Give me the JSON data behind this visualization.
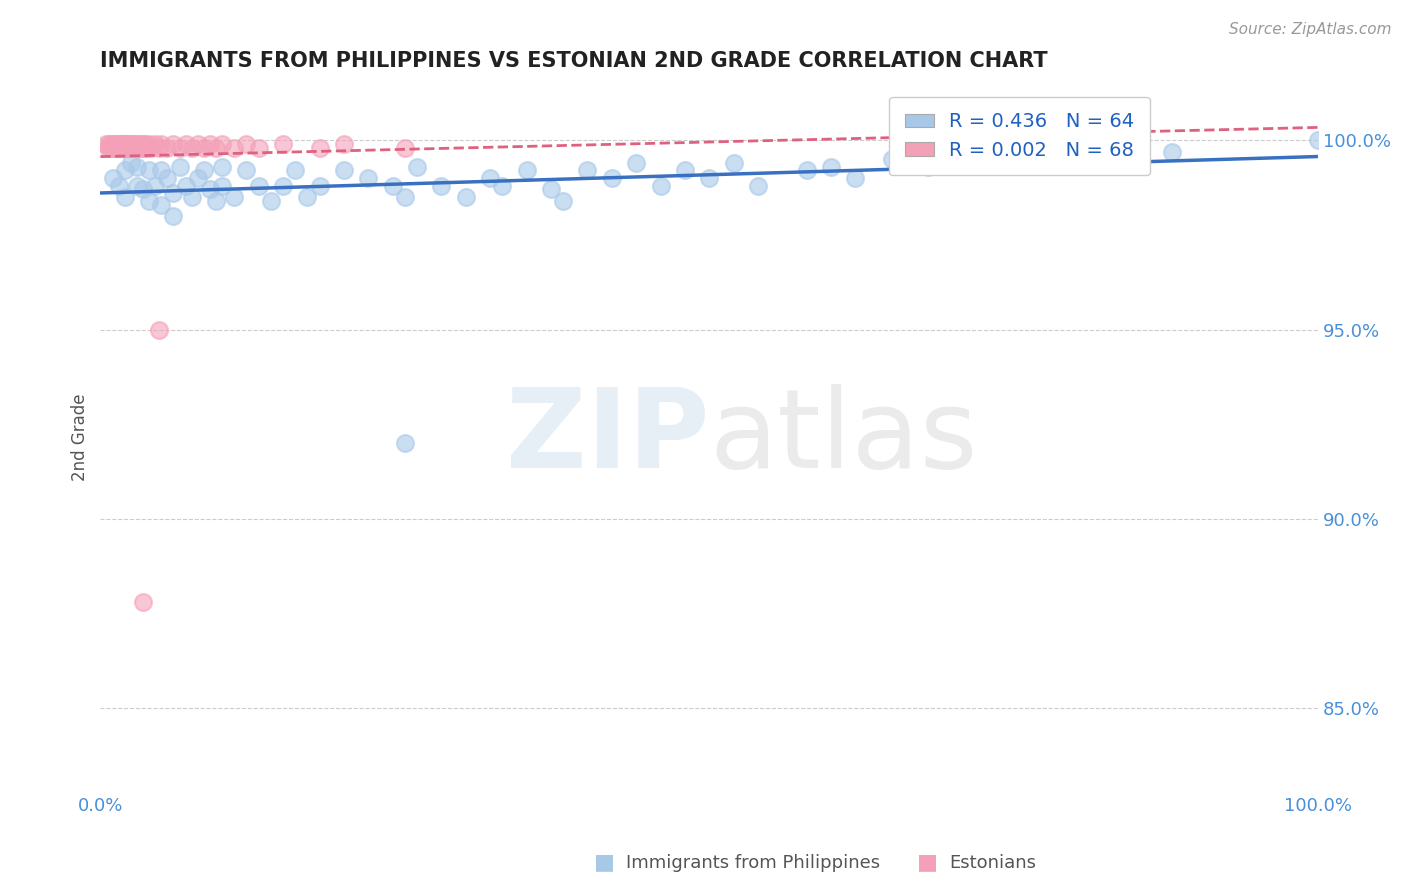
{
  "title": "IMMIGRANTS FROM PHILIPPINES VS ESTONIAN 2ND GRADE CORRELATION CHART",
  "source": "Source: ZipAtlas.com",
  "ylabel": "2nd Grade",
  "legend_R_blue": "R = 0.436",
  "legend_N_blue": "N = 64",
  "legend_R_pink": "R = 0.002",
  "legend_N_pink": "N = 68",
  "blue_color": "#a8c8e8",
  "pink_color": "#f4a0b8",
  "trend_blue_color": "#3a70c0",
  "trend_pink_color": "#e06080",
  "blue_scatter_x": [
    0.01,
    0.015,
    0.02,
    0.025,
    0.02,
    0.03,
    0.03,
    0.035,
    0.04,
    0.04,
    0.045,
    0.05,
    0.05,
    0.055,
    0.06,
    0.065,
    0.06,
    0.07,
    0.075,
    0.08,
    0.085,
    0.09,
    0.095,
    0.1,
    0.1,
    0.11,
    0.12,
    0.13,
    0.14,
    0.15,
    0.16,
    0.17,
    0.18,
    0.2,
    0.22,
    0.24,
    0.25,
    0.26,
    0.28,
    0.3,
    0.32,
    0.33,
    0.35,
    0.37,
    0.38,
    0.4,
    0.42,
    0.44,
    0.46,
    0.48,
    0.5,
    0.52,
    0.54,
    0.58,
    0.6,
    0.62,
    0.65,
    0.68,
    0.72,
    0.75,
    0.8,
    0.88,
    1.0,
    0.25
  ],
  "blue_scatter_y": [
    0.99,
    0.988,
    0.992,
    0.994,
    0.985,
    0.988,
    0.993,
    0.987,
    0.992,
    0.984,
    0.988,
    0.992,
    0.983,
    0.99,
    0.986,
    0.993,
    0.98,
    0.988,
    0.985,
    0.99,
    0.992,
    0.987,
    0.984,
    0.993,
    0.988,
    0.985,
    0.992,
    0.988,
    0.984,
    0.988,
    0.992,
    0.985,
    0.988,
    0.992,
    0.99,
    0.988,
    0.985,
    0.993,
    0.988,
    0.985,
    0.99,
    0.988,
    0.992,
    0.987,
    0.984,
    0.992,
    0.99,
    0.994,
    0.988,
    0.992,
    0.99,
    0.994,
    0.988,
    0.992,
    0.993,
    0.99,
    0.995,
    0.993,
    0.997,
    0.995,
    0.998,
    0.997,
    1.0,
    0.92
  ],
  "pink_scatter_x": [
    0.005,
    0.006,
    0.007,
    0.008,
    0.009,
    0.01,
    0.01,
    0.011,
    0.012,
    0.012,
    0.013,
    0.014,
    0.015,
    0.015,
    0.016,
    0.016,
    0.017,
    0.018,
    0.018,
    0.019,
    0.02,
    0.02,
    0.021,
    0.022,
    0.022,
    0.023,
    0.023,
    0.024,
    0.025,
    0.025,
    0.026,
    0.027,
    0.027,
    0.028,
    0.029,
    0.03,
    0.031,
    0.032,
    0.033,
    0.034,
    0.035,
    0.036,
    0.037,
    0.038,
    0.04,
    0.042,
    0.045,
    0.048,
    0.05,
    0.055,
    0.06,
    0.065,
    0.07,
    0.075,
    0.08,
    0.085,
    0.09,
    0.095,
    0.1,
    0.11,
    0.12,
    0.13,
    0.15,
    0.18,
    0.2,
    0.25,
    0.048,
    0.035
  ],
  "pink_scatter_y": [
    0.999,
    0.998,
    0.999,
    0.998,
    0.999,
    0.998,
    0.999,
    0.998,
    0.999,
    0.998,
    0.999,
    0.998,
    0.999,
    0.998,
    0.999,
    0.998,
    0.999,
    0.998,
    0.999,
    0.998,
    0.999,
    0.998,
    0.999,
    0.998,
    0.999,
    0.998,
    0.999,
    0.998,
    0.999,
    0.998,
    0.999,
    0.998,
    0.999,
    0.998,
    0.999,
    0.998,
    0.999,
    0.998,
    0.999,
    0.998,
    0.999,
    0.998,
    0.999,
    0.998,
    0.999,
    0.998,
    0.999,
    0.998,
    0.999,
    0.998,
    0.999,
    0.998,
    0.999,
    0.998,
    0.999,
    0.998,
    0.999,
    0.998,
    0.999,
    0.998,
    0.999,
    0.998,
    0.999,
    0.998,
    0.999,
    0.998,
    0.95,
    0.878
  ],
  "xlim": [
    0.0,
    1.0
  ],
  "ylim": [
    0.828,
    1.015
  ],
  "ytick_positions": [
    0.85,
    0.9,
    0.95,
    1.0
  ],
  "ytick_labels": [
    "85.0%",
    "90.0%",
    "95.0%",
    "100.0%"
  ],
  "background_color": "#ffffff",
  "grid_color": "#cccccc",
  "title_color": "#222222",
  "axis_label_color": "#555555",
  "ytick_color": "#4a90d9",
  "xtick_color": "#4a90d9"
}
